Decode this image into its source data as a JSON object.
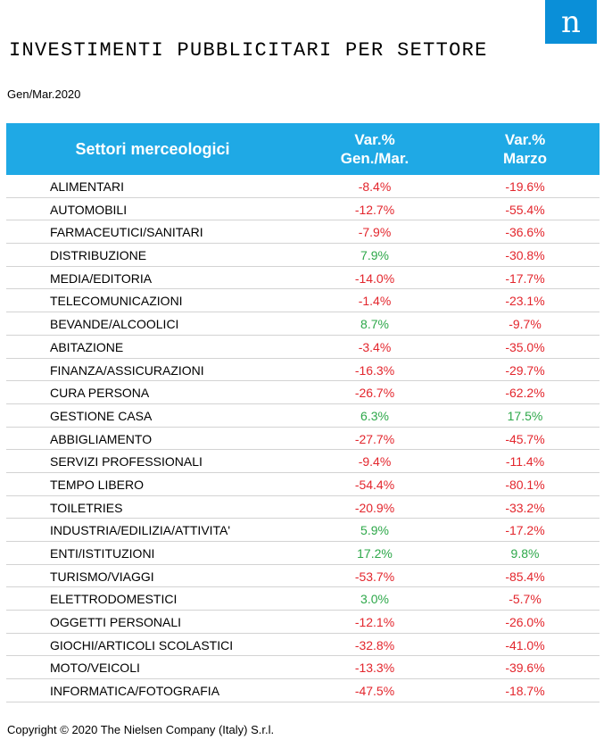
{
  "logo": {
    "glyph": "n"
  },
  "title": "INVESTIMENTI PUBBLICITARI PER SETTORE",
  "period": "Gen/Mar.2020",
  "table": {
    "headers": {
      "sector": "Settori merceologici",
      "var_q1_line1": "Var.%",
      "var_q1_line2": "Gen./Mar.",
      "var_march_line1": "Var.%",
      "var_march_line2": "Marzo"
    },
    "rows": [
      {
        "sector": "ALIMENTARI",
        "v1": "-8.4%",
        "v2": "-19.6%"
      },
      {
        "sector": "AUTOMOBILI",
        "v1": "-12.7%",
        "v2": "-55.4%"
      },
      {
        "sector": "FARMACEUTICI/SANITARI",
        "v1": "-7.9%",
        "v2": "-36.6%"
      },
      {
        "sector": "DISTRIBUZIONE",
        "v1": "7.9%",
        "v2": "-30.8%"
      },
      {
        "sector": "MEDIA/EDITORIA",
        "v1": "-14.0%",
        "v2": "-17.7%"
      },
      {
        "sector": "TELECOMUNICAZIONI",
        "v1": "-1.4%",
        "v2": "-23.1%"
      },
      {
        "sector": "BEVANDE/ALCOOLICI",
        "v1": "8.7%",
        "v2": "-9.7%"
      },
      {
        "sector": "ABITAZIONE",
        "v1": "-3.4%",
        "v2": "-35.0%"
      },
      {
        "sector": "FINANZA/ASSICURAZIONI",
        "v1": "-16.3%",
        "v2": "-29.7%"
      },
      {
        "sector": "CURA PERSONA",
        "v1": "-26.7%",
        "v2": "-62.2%"
      },
      {
        "sector": "GESTIONE CASA",
        "v1": "6.3%",
        "v2": "17.5%"
      },
      {
        "sector": "ABBIGLIAMENTO",
        "v1": "-27.7%",
        "v2": "-45.7%"
      },
      {
        "sector": "SERVIZI PROFESSIONALI",
        "v1": "-9.4%",
        "v2": "-11.4%"
      },
      {
        "sector": "TEMPO LIBERO",
        "v1": "-54.4%",
        "v2": "-80.1%"
      },
      {
        "sector": "TOILETRIES",
        "v1": "-20.9%",
        "v2": "-33.2%"
      },
      {
        "sector": "INDUSTRIA/EDILIZIA/ATTIVITA'",
        "v1": "5.9%",
        "v2": "-17.2%"
      },
      {
        "sector": "ENTI/ISTITUZIONI",
        "v1": "17.2%",
        "v2": "9.8%"
      },
      {
        "sector": "TURISMO/VIAGGI",
        "v1": "-53.7%",
        "v2": "-85.4%"
      },
      {
        "sector": "ELETTRODOMESTICI",
        "v1": "3.0%",
        "v2": "-5.7%"
      },
      {
        "sector": "OGGETTI PERSONALI",
        "v1": "-12.1%",
        "v2": "-26.0%"
      },
      {
        "sector": "GIOCHI/ARTICOLI SCOLASTICI",
        "v1": "-32.8%",
        "v2": "-41.0%"
      },
      {
        "sector": "MOTO/VEICOLI",
        "v1": "-13.3%",
        "v2": "-39.6%"
      },
      {
        "sector": "INFORMATICA/FOTOGRAFIA",
        "v1": "-47.5%",
        "v2": "-18.7%"
      }
    ]
  },
  "colors": {
    "header_bg": "#1fa9e5",
    "logo_bg": "#0a8fd8",
    "negative": "#e3262d",
    "positive": "#2ea84a"
  },
  "copyright": "Copyright © 2020 The Nielsen Company (Italy) S.r.l."
}
